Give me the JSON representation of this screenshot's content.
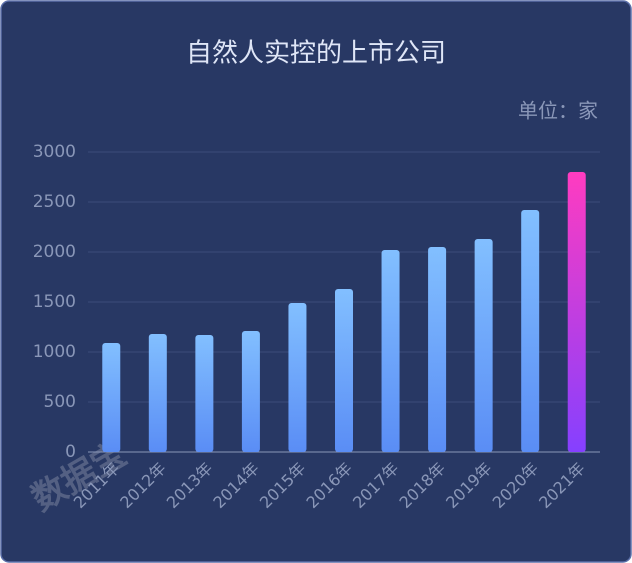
{
  "chart_data": {
    "type": "bar",
    "title": "自然人实控的上市公司",
    "unit_label": "单位：家",
    "watermark": "数据宝",
    "categories": [
      "2011年",
      "2012年",
      "2013年",
      "2014年",
      "2015年",
      "2016年",
      "2017年",
      "2018年",
      "2019年",
      "2020年",
      "2021年"
    ],
    "values": [
      1090,
      1180,
      1170,
      1210,
      1490,
      1630,
      2020,
      2050,
      2130,
      2420,
      2800
    ],
    "colors": [
      [
        "#82bfff",
        "#5a8df5"
      ],
      [
        "#82bfff",
        "#5a8df5"
      ],
      [
        "#82bfff",
        "#5a8df5"
      ],
      [
        "#82bfff",
        "#5a8df5"
      ],
      [
        "#82bfff",
        "#5a8df5"
      ],
      [
        "#82bfff",
        "#5a8df5"
      ],
      [
        "#82bfff",
        "#5a8df5"
      ],
      [
        "#82bfff",
        "#5a8df5"
      ],
      [
        "#82bfff",
        "#5a8df5"
      ],
      [
        "#82bfff",
        "#5a8df5"
      ],
      [
        "#ff3cc0",
        "#8540ff"
      ]
    ],
    "ylim": [
      0,
      3000
    ],
    "yticks": [
      0,
      500,
      1000,
      1500,
      2000,
      2500,
      3000
    ],
    "grid": true
  }
}
